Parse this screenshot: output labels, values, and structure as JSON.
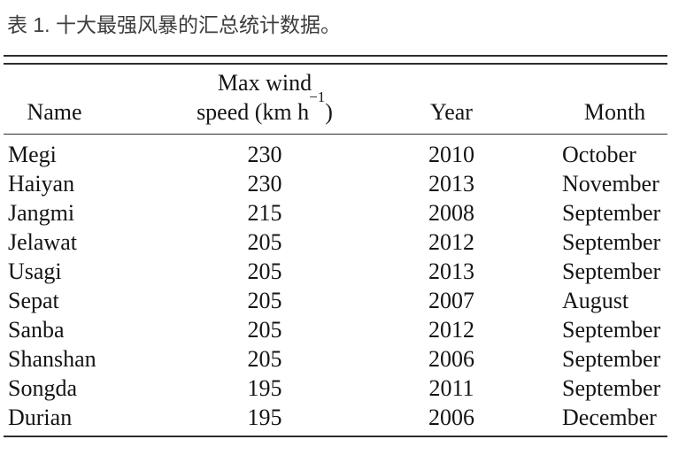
{
  "caption": "表 1. 十大最强风暴的汇总统计数据。",
  "table": {
    "header": {
      "name": "Name",
      "max_wind_line1": "Max wind",
      "max_wind_line2_pre": "speed (km h",
      "max_wind_sup": "−1",
      "max_wind_line2_post": ")",
      "year": "Year",
      "month": "Month"
    },
    "rows": [
      {
        "name": "Megi",
        "max_wind_kmh": "230",
        "year": "2010",
        "month": "October"
      },
      {
        "name": "Haiyan",
        "max_wind_kmh": "230",
        "year": "2013",
        "month": "November"
      },
      {
        "name": "Jangmi",
        "max_wind_kmh": "215",
        "year": "2008",
        "month": "September"
      },
      {
        "name": "Jelawat",
        "max_wind_kmh": "205",
        "year": "2012",
        "month": "September"
      },
      {
        "name": "Usagi",
        "max_wind_kmh": "205",
        "year": "2013",
        "month": "September"
      },
      {
        "name": "Sepat",
        "max_wind_kmh": "205",
        "year": "2007",
        "month": "August"
      },
      {
        "name": "Sanba",
        "max_wind_kmh": "205",
        "year": "2012",
        "month": "September"
      },
      {
        "name": "Shanshan",
        "max_wind_kmh": "205",
        "year": "2006",
        "month": "September"
      },
      {
        "name": "Songda",
        "max_wind_kmh": "195",
        "year": "2011",
        "month": "September"
      },
      {
        "name": "Durian",
        "max_wind_kmh": "195",
        "year": "2006",
        "month": "December"
      }
    ]
  },
  "colors": {
    "caption_text": "#3d3d3d",
    "table_text": "#141414",
    "rule": "#2e2e2e"
  }
}
